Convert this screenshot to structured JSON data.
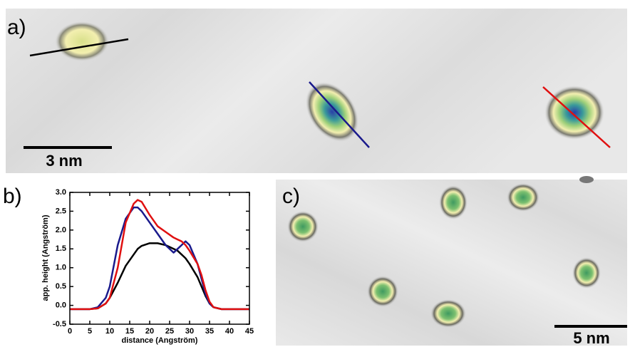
{
  "panel_labels": {
    "a": "a)",
    "b": "b)",
    "c": "c)"
  },
  "scale_bars": {
    "a": "3 nm",
    "c": "5 nm"
  },
  "chart_data": {
    "type": "line",
    "x_label": "distance (Angström)",
    "y_label": "app. height (Angström)",
    "x": [
      0,
      5,
      7,
      9,
      10,
      12,
      14,
      16,
      17,
      18,
      20,
      22,
      24,
      26,
      27,
      28,
      29,
      30,
      32,
      33,
      34,
      35,
      36,
      38,
      45
    ],
    "series": [
      {
        "color": "#000000",
        "values": [
          -0.1,
          -0.1,
          -0.08,
          0.05,
          0.2,
          0.6,
          1.05,
          1.35,
          1.5,
          1.58,
          1.65,
          1.65,
          1.6,
          1.5,
          1.45,
          1.35,
          1.25,
          1.1,
          0.75,
          0.5,
          0.25,
          0.05,
          -0.05,
          -0.1,
          -0.1
        ]
      },
      {
        "color": "#1a1a8c",
        "values": [
          -0.1,
          -0.1,
          -0.05,
          0.2,
          0.5,
          1.6,
          2.3,
          2.6,
          2.6,
          2.5,
          2.2,
          1.9,
          1.6,
          1.4,
          1.5,
          1.6,
          1.7,
          1.6,
          1.1,
          0.7,
          0.3,
          0.05,
          -0.05,
          -0.1,
          -0.1
        ]
      },
      {
        "color": "#e01010",
        "values": [
          -0.1,
          -0.1,
          -0.08,
          0.05,
          0.2,
          1.0,
          2.2,
          2.7,
          2.8,
          2.75,
          2.4,
          2.1,
          1.95,
          1.8,
          1.75,
          1.7,
          1.6,
          1.45,
          1.1,
          0.8,
          0.4,
          0.1,
          -0.05,
          -0.1,
          -0.1
        ]
      }
    ],
    "xlim": [
      0,
      45
    ],
    "xticks": [
      0,
      5,
      10,
      15,
      20,
      25,
      30,
      35,
      40,
      45
    ],
    "ylim": [
      -0.5,
      3.0
    ],
    "yticks": [
      -0.5,
      {
        "value": 0,
        "label": "0.0"
      },
      0.5,
      {
        "value": 1,
        "label": "1.0"
      },
      1.5,
      {
        "value": 2,
        "label": "2.0"
      },
      2.5,
      {
        "value": 3,
        "label": "3.0"
      }
    ],
    "grid": false
  }
}
